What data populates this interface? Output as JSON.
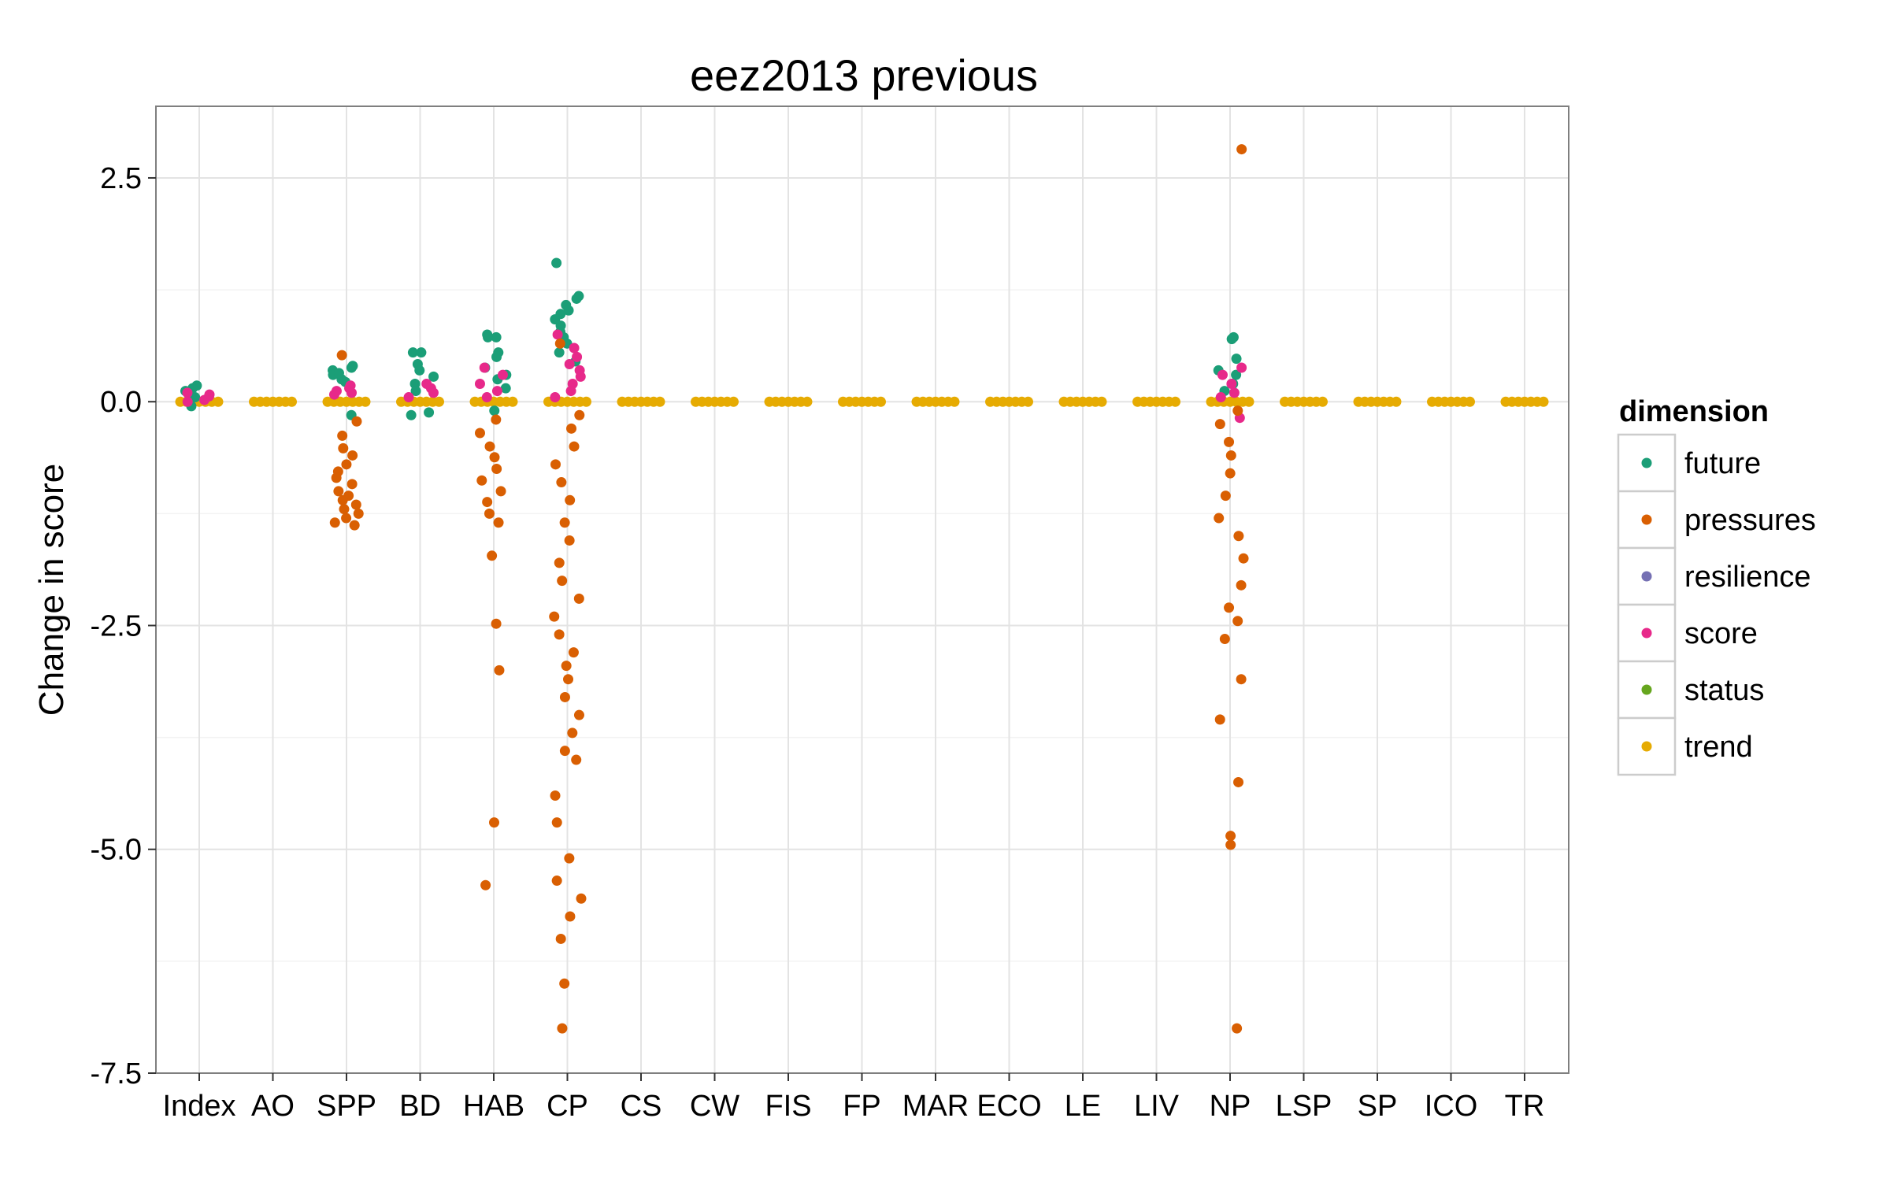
{
  "chart_data": {
    "type": "scatter",
    "title": "eez2013 previous",
    "xlabel": "",
    "ylabel": "Change in score",
    "ylim": [
      -7.5,
      3.3
    ],
    "yticks": [
      {
        "value": 2.5,
        "label": "2.5"
      },
      {
        "value": 0.0,
        "label": "0.0"
      },
      {
        "value": -2.5,
        "label": "-2.5"
      },
      {
        "value": -5.0,
        "label": "-5.0"
      },
      {
        "value": -7.5,
        "label": "-7.5"
      }
    ],
    "categories": [
      "Index",
      "AO",
      "SPP",
      "BD",
      "HAB",
      "CP",
      "CS",
      "CW",
      "FIS",
      "FP",
      "MAR",
      "ECO",
      "LE",
      "LIV",
      "NP",
      "LSP",
      "SP",
      "ICO",
      "TR"
    ],
    "grid": true,
    "legend": {
      "title": "dimension",
      "position": "right",
      "entries": [
        {
          "name": "future",
          "color": "#1b9e77"
        },
        {
          "name": "pressures",
          "color": "#d95f02"
        },
        {
          "name": "resilience",
          "color": "#7570b3"
        },
        {
          "name": "score",
          "color": "#e7298a"
        },
        {
          "name": "status",
          "color": "#66a61e"
        },
        {
          "name": "trend",
          "color": "#e6ab02"
        }
      ]
    },
    "series": [
      {
        "name": "trend",
        "color": "#e6ab02",
        "points": [
          [
            "Index",
            0.0
          ],
          [
            "AO",
            0.0
          ],
          [
            "SPP",
            0.0
          ],
          [
            "BD",
            0.0
          ],
          [
            "HAB",
            0.0
          ],
          [
            "CP",
            0.0
          ],
          [
            "CS",
            0.0
          ],
          [
            "CW",
            0.0
          ],
          [
            "FIS",
            0.0
          ],
          [
            "FP",
            0.0
          ],
          [
            "MAR",
            0.0
          ],
          [
            "ECO",
            0.0
          ],
          [
            "LE",
            0.0
          ],
          [
            "LIV",
            0.0
          ],
          [
            "NP",
            0.0
          ],
          [
            "LSP",
            0.0
          ],
          [
            "SP",
            0.0
          ],
          [
            "ICO",
            0.0
          ],
          [
            "TR",
            0.0
          ]
        ]
      },
      {
        "name": "future",
        "color": "#1b9e77",
        "points": [
          [
            "Index",
            0.18
          ],
          [
            "Index",
            0.12
          ],
          [
            "Index",
            0.05
          ],
          [
            "Index",
            -0.05
          ],
          [
            "Index",
            0.15
          ],
          [
            "Index",
            0.08
          ],
          [
            "SPP",
            0.4
          ],
          [
            "SPP",
            0.35
          ],
          [
            "SPP",
            0.3
          ],
          [
            "SPP",
            0.25
          ],
          [
            "SPP",
            0.38
          ],
          [
            "SPP",
            0.32
          ],
          [
            "SPP",
            0.22
          ],
          [
            "SPP",
            -0.15
          ],
          [
            "BD",
            0.55
          ],
          [
            "BD",
            0.55
          ],
          [
            "BD",
            0.42
          ],
          [
            "BD",
            0.35
          ],
          [
            "BD",
            0.28
          ],
          [
            "BD",
            0.2
          ],
          [
            "BD",
            0.12
          ],
          [
            "BD",
            -0.15
          ],
          [
            "BD",
            -0.12
          ],
          [
            "HAB",
            0.75
          ],
          [
            "HAB",
            0.72
          ],
          [
            "HAB",
            0.72
          ],
          [
            "HAB",
            0.55
          ],
          [
            "HAB",
            0.5
          ],
          [
            "HAB",
            0.38
          ],
          [
            "HAB",
            0.3
          ],
          [
            "HAB",
            0.25
          ],
          [
            "HAB",
            0.15
          ],
          [
            "HAB",
            -0.1
          ],
          [
            "CP",
            1.55
          ],
          [
            "CP",
            1.18
          ],
          [
            "CP",
            1.15
          ],
          [
            "CP",
            1.08
          ],
          [
            "CP",
            1.02
          ],
          [
            "CP",
            0.98
          ],
          [
            "CP",
            0.92
          ],
          [
            "CP",
            0.85
          ],
          [
            "CP",
            0.78
          ],
          [
            "CP",
            0.72
          ],
          [
            "CP",
            0.65
          ],
          [
            "CP",
            0.55
          ],
          [
            "CP",
            0.45
          ],
          [
            "NP",
            0.72
          ],
          [
            "NP",
            0.7
          ],
          [
            "NP",
            0.48
          ],
          [
            "NP",
            0.35
          ],
          [
            "NP",
            0.3
          ],
          [
            "NP",
            0.2
          ],
          [
            "NP",
            0.12
          ]
        ]
      },
      {
        "name": "score",
        "color": "#e7298a",
        "points": [
          [
            "Index",
            0.1
          ],
          [
            "Index",
            0.06
          ],
          [
            "Index",
            0.02
          ],
          [
            "Index",
            0.0
          ],
          [
            "Index",
            0.08
          ],
          [
            "SPP",
            0.18
          ],
          [
            "SPP",
            0.12
          ],
          [
            "SPP",
            0.08
          ],
          [
            "SPP",
            0.15
          ],
          [
            "SPP",
            0.1
          ],
          [
            "BD",
            0.15
          ],
          [
            "BD",
            0.1
          ],
          [
            "BD",
            0.05
          ],
          [
            "BD",
            0.2
          ],
          [
            "HAB",
            0.38
          ],
          [
            "HAB",
            0.3
          ],
          [
            "HAB",
            0.2
          ],
          [
            "HAB",
            0.12
          ],
          [
            "HAB",
            0.05
          ],
          [
            "CP",
            0.75
          ],
          [
            "CP",
            0.6
          ],
          [
            "CP",
            0.5
          ],
          [
            "CP",
            0.42
          ],
          [
            "CP",
            0.35
          ],
          [
            "CP",
            0.28
          ],
          [
            "CP",
            0.2
          ],
          [
            "CP",
            0.12
          ],
          [
            "CP",
            0.05
          ],
          [
            "NP",
            0.38
          ],
          [
            "NP",
            0.3
          ],
          [
            "NP",
            0.2
          ],
          [
            "NP",
            0.1
          ],
          [
            "NP",
            0.05
          ],
          [
            "NP",
            -0.18
          ]
        ]
      },
      {
        "name": "pressures",
        "color": "#d95f02",
        "points": [
          [
            "SPP",
            0.52
          ],
          [
            "SPP",
            -0.22
          ],
          [
            "SPP",
            -0.38
          ],
          [
            "SPP",
            -0.52
          ],
          [
            "SPP",
            -0.6
          ],
          [
            "SPP",
            -0.7
          ],
          [
            "SPP",
            -0.78
          ],
          [
            "SPP",
            -0.85
          ],
          [
            "SPP",
            -0.92
          ],
          [
            "SPP",
            -1.0
          ],
          [
            "SPP",
            -1.05
          ],
          [
            "SPP",
            -1.1
          ],
          [
            "SPP",
            -1.15
          ],
          [
            "SPP",
            -1.2
          ],
          [
            "SPP",
            -1.25
          ],
          [
            "SPP",
            -1.3
          ],
          [
            "SPP",
            -1.35
          ],
          [
            "SPP",
            -1.38
          ],
          [
            "HAB",
            -0.2
          ],
          [
            "HAB",
            -0.35
          ],
          [
            "HAB",
            -0.5
          ],
          [
            "HAB",
            -0.62
          ],
          [
            "HAB",
            -0.75
          ],
          [
            "HAB",
            -0.88
          ],
          [
            "HAB",
            -1.0
          ],
          [
            "HAB",
            -1.12
          ],
          [
            "HAB",
            -1.25
          ],
          [
            "HAB",
            -1.35
          ],
          [
            "HAB",
            -1.72
          ],
          [
            "HAB",
            -2.48
          ],
          [
            "HAB",
            -3.0
          ],
          [
            "HAB",
            -4.7
          ],
          [
            "HAB",
            -5.4
          ],
          [
            "CP",
            0.65
          ],
          [
            "CP",
            -0.15
          ],
          [
            "CP",
            -0.3
          ],
          [
            "CP",
            -0.5
          ],
          [
            "CP",
            -0.7
          ],
          [
            "CP",
            -0.9
          ],
          [
            "CP",
            -1.1
          ],
          [
            "CP",
            -1.35
          ],
          [
            "CP",
            -1.55
          ],
          [
            "CP",
            -1.8
          ],
          [
            "CP",
            -2.0
          ],
          [
            "CP",
            -2.2
          ],
          [
            "CP",
            -2.4
          ],
          [
            "CP",
            -2.6
          ],
          [
            "CP",
            -2.8
          ],
          [
            "CP",
            -2.95
          ],
          [
            "CP",
            -3.1
          ],
          [
            "CP",
            -3.3
          ],
          [
            "CP",
            -3.5
          ],
          [
            "CP",
            -3.7
          ],
          [
            "CP",
            -3.9
          ],
          [
            "CP",
            -4.0
          ],
          [
            "CP",
            -4.4
          ],
          [
            "CP",
            -4.7
          ],
          [
            "CP",
            -5.1
          ],
          [
            "CP",
            -5.35
          ],
          [
            "CP",
            -5.55
          ],
          [
            "CP",
            -5.75
          ],
          [
            "CP",
            -6.0
          ],
          [
            "CP",
            -6.5
          ],
          [
            "CP",
            -7.0
          ],
          [
            "NP",
            2.82
          ],
          [
            "NP",
            -0.1
          ],
          [
            "NP",
            -0.25
          ],
          [
            "NP",
            -0.45
          ],
          [
            "NP",
            -0.6
          ],
          [
            "NP",
            -0.8
          ],
          [
            "NP",
            -1.05
          ],
          [
            "NP",
            -1.3
          ],
          [
            "NP",
            -1.5
          ],
          [
            "NP",
            -1.75
          ],
          [
            "NP",
            -2.05
          ],
          [
            "NP",
            -2.3
          ],
          [
            "NP",
            -2.45
          ],
          [
            "NP",
            -2.65
          ],
          [
            "NP",
            -3.1
          ],
          [
            "NP",
            -3.55
          ],
          [
            "NP",
            -4.25
          ],
          [
            "NP",
            -4.85
          ],
          [
            "NP",
            -4.95
          ],
          [
            "NP",
            -7.0
          ]
        ]
      }
    ]
  }
}
